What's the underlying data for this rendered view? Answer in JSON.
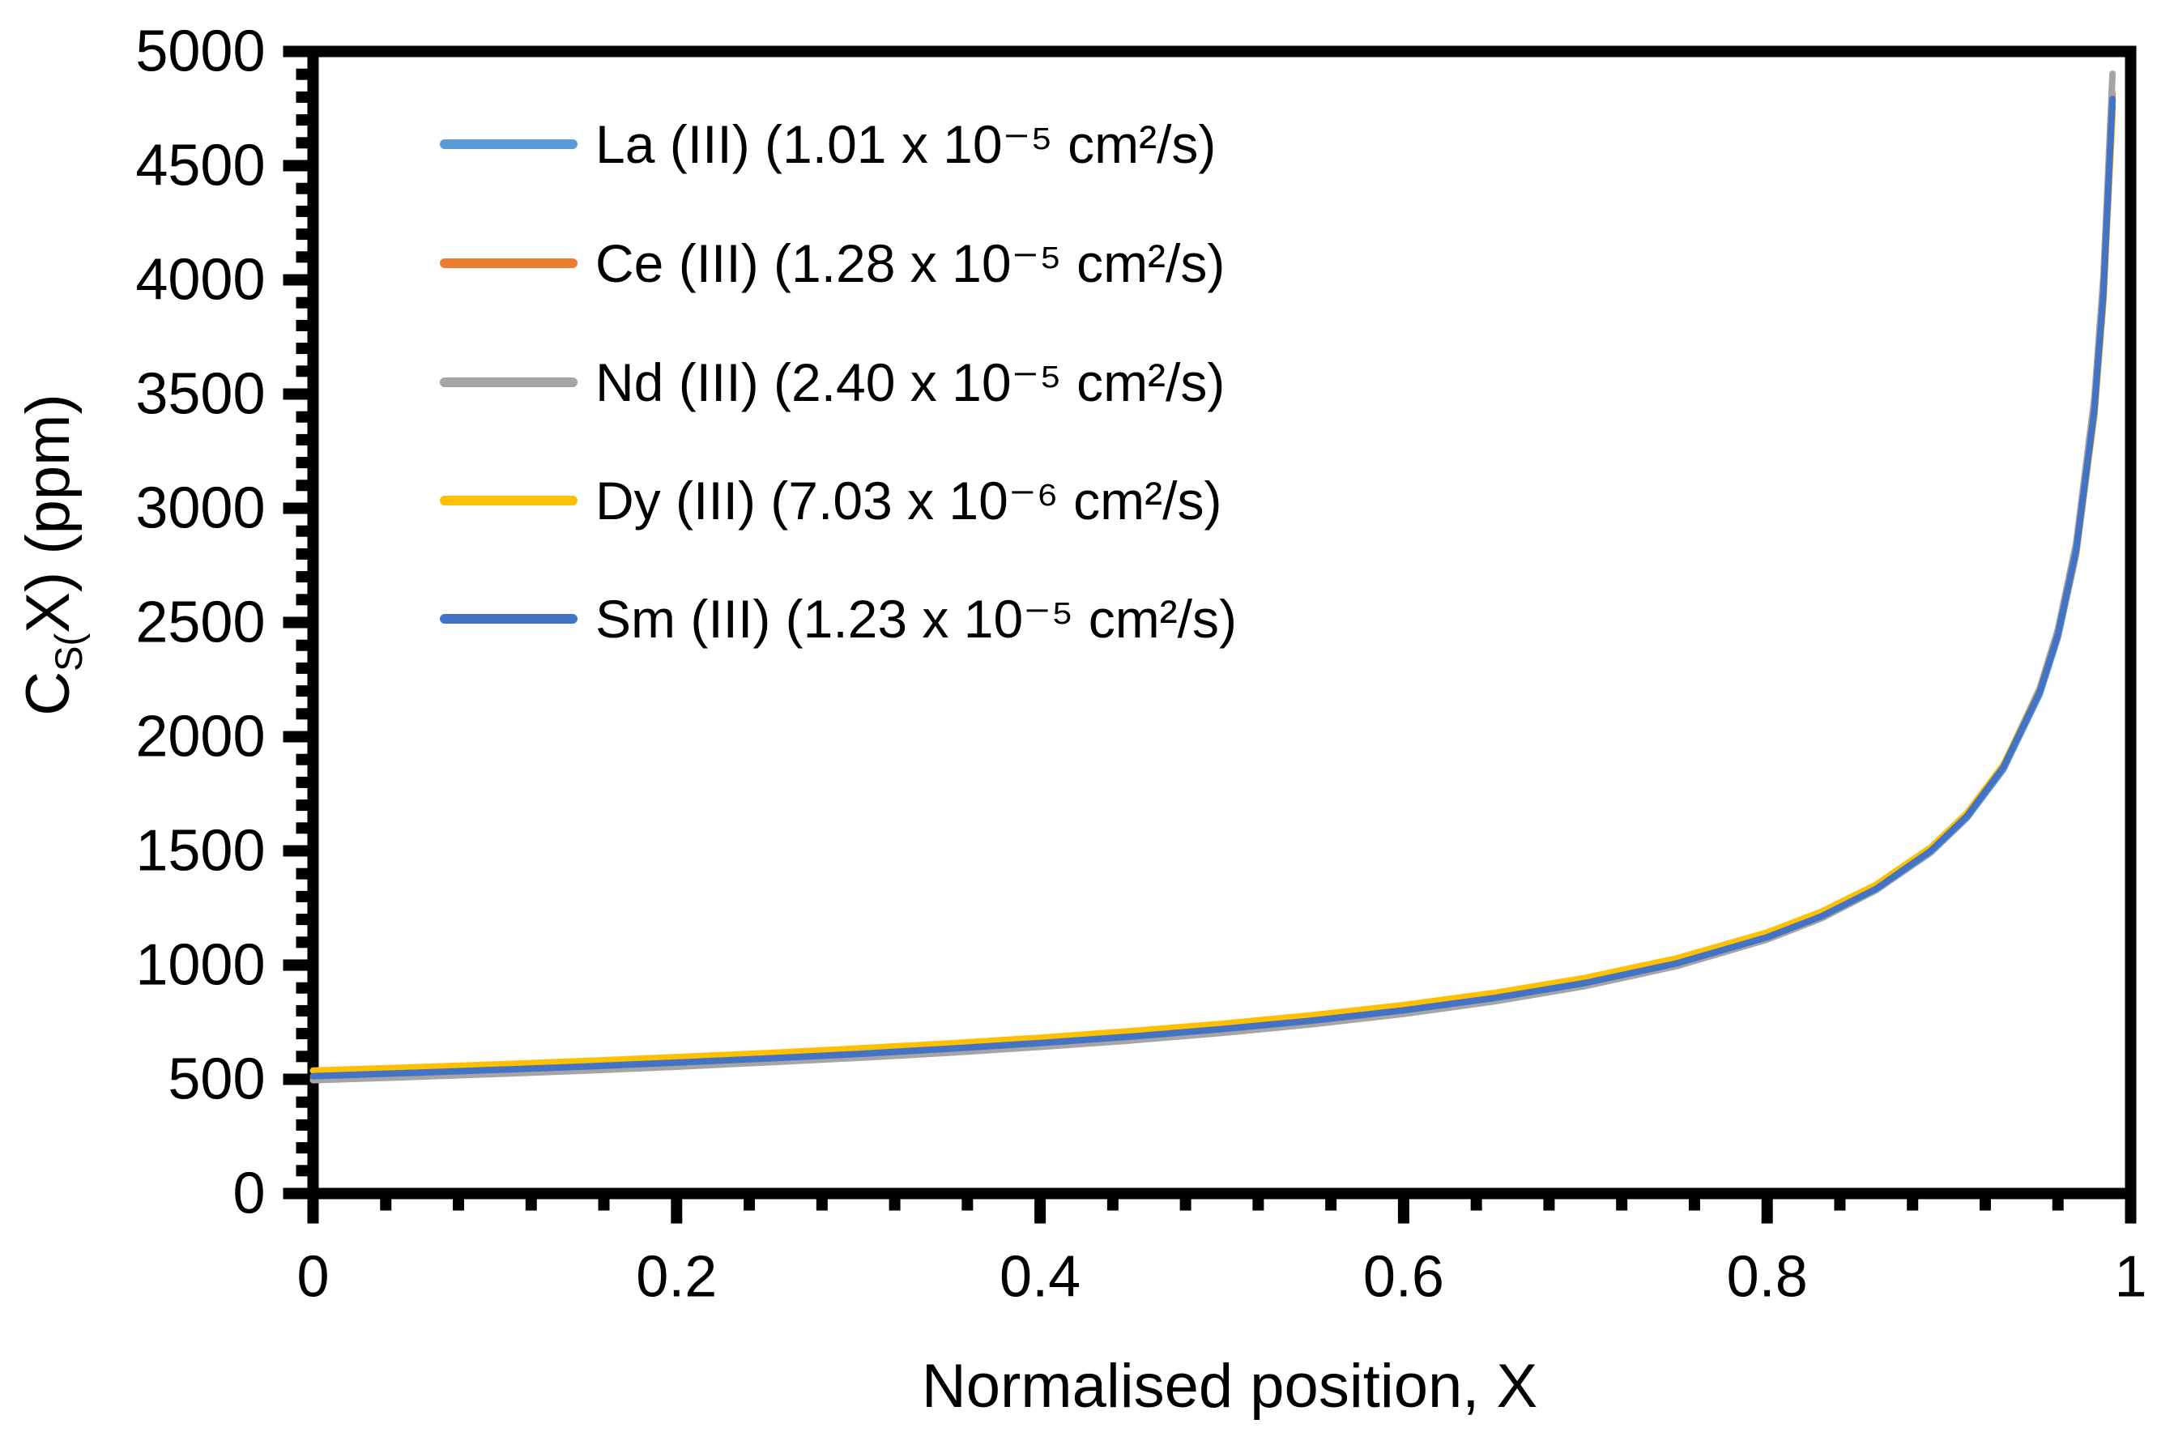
{
  "figure": {
    "background": "#FFFFFF",
    "axis_color": "#000000",
    "text_color": "#000000"
  },
  "y_axis": {
    "title_prefix": "C",
    "title_sub": "S(",
    "title_rest": "X) (ppm)",
    "min": 0,
    "max": 5000,
    "major_step": 500,
    "minor_step": 100,
    "tick_labels": [
      "0",
      "500",
      "1000",
      "1500",
      "2000",
      "2500",
      "3000",
      "3500",
      "4000",
      "4500",
      "5000"
    ]
  },
  "x_axis": {
    "title": "Normalised position, X",
    "min": 0,
    "max": 1,
    "major_step": 0.2,
    "minor_step": 0.04,
    "tick_labels": [
      "0",
      "0.2",
      "0.4",
      "0.6",
      "0.8",
      "1"
    ]
  },
  "chart_data": {
    "type": "line",
    "title": "",
    "xlabel": "Normalised position, X",
    "ylabel": "C_S(X) (ppm)",
    "xlim": [
      0,
      1
    ],
    "ylim": [
      0,
      5000
    ],
    "grid": false,
    "legend_position": "top-left-inside",
    "x": [
      0,
      0.05,
      0.1,
      0.15,
      0.2,
      0.25,
      0.3,
      0.35,
      0.4,
      0.45,
      0.5,
      0.55,
      0.6,
      0.65,
      0.7,
      0.75,
      0.8,
      0.83,
      0.86,
      0.89,
      0.91,
      0.93,
      0.95,
      0.96,
      0.97,
      0.98,
      0.985,
      0.99
    ],
    "series": [
      {
        "name": "La (III)",
        "label": "La (III) (1.01 x 10⁻⁵ cm²/s)",
        "diffusion_coefficient": "1.01 x 10⁻⁵ cm²/s",
        "color": "#5B9BD5",
        "values": [
          512,
          525,
          539,
          554,
          571,
          589,
          609,
          631,
          656,
          684,
          717,
          754,
          799,
          852,
          918,
          1003,
          1117,
          1209,
          1328,
          1493,
          1645,
          1857,
          2186,
          2435,
          2798,
          3405,
          3912,
          4759
        ]
      },
      {
        "name": "Ce (III)",
        "label": "Ce (III) (1.28 x 10⁻⁵ cm²/s)",
        "diffusion_coefficient": "1.28 x 10⁻⁵ cm²/s",
        "color": "#ED7D31",
        "values": [
          510,
          523,
          537,
          552,
          569,
          587,
          607,
          630,
          655,
          683,
          716,
          754,
          798,
          852,
          919,
          1004,
          1120,
          1212,
          1332,
          1499,
          1653,
          1868,
          2200,
          2453,
          2821,
          3437,
          3953,
          4815
        ]
      },
      {
        "name": "Nd (III)",
        "label": "Nd (III) (2.40 x 10⁻⁵ cm²/s)",
        "diffusion_coefficient": "2.40 x 10⁻⁵ cm²/s",
        "color": "#A5A5A5",
        "values": [
          496,
          509,
          523,
          538,
          555,
          574,
          594,
          616,
          642,
          670,
          703,
          741,
          786,
          841,
          908,
          995,
          1112,
          1205,
          1328,
          1497,
          1654,
          1873,
          2213,
          2471,
          2849,
          3481,
          4013,
          4902
        ]
      },
      {
        "name": "Dy (III)",
        "label": "Dy (III) (7.03 x 10⁻⁶ cm²/s)",
        "diffusion_coefficient": "7.03 x 10⁻⁶ cm²/s",
        "color": "#FFC000",
        "values": [
          538,
          551,
          565,
          580,
          597,
          615,
          635,
          657,
          682,
          711,
          743,
          781,
          825,
          878,
          944,
          1029,
          1143,
          1234,
          1352,
          1515,
          1666,
          1877,
          2202,
          2448,
          2806,
          3403,
          3902,
          4733
        ]
      },
      {
        "name": "Sm (III)",
        "label": "Sm (III) (1.23 x 10⁻⁵ cm²/s)",
        "diffusion_coefficient": "1.23 x 10⁻⁵ cm²/s",
        "color": "#4472C4",
        "values": [
          514,
          527,
          541,
          556,
          573,
          591,
          611,
          634,
          659,
          687,
          720,
          757,
          802,
          856,
          922,
          1007,
          1122,
          1214,
          1334,
          1500,
          1653,
          1867,
          2198,
          2448,
          2815,
          3426,
          3937,
          4792
        ]
      }
    ]
  }
}
